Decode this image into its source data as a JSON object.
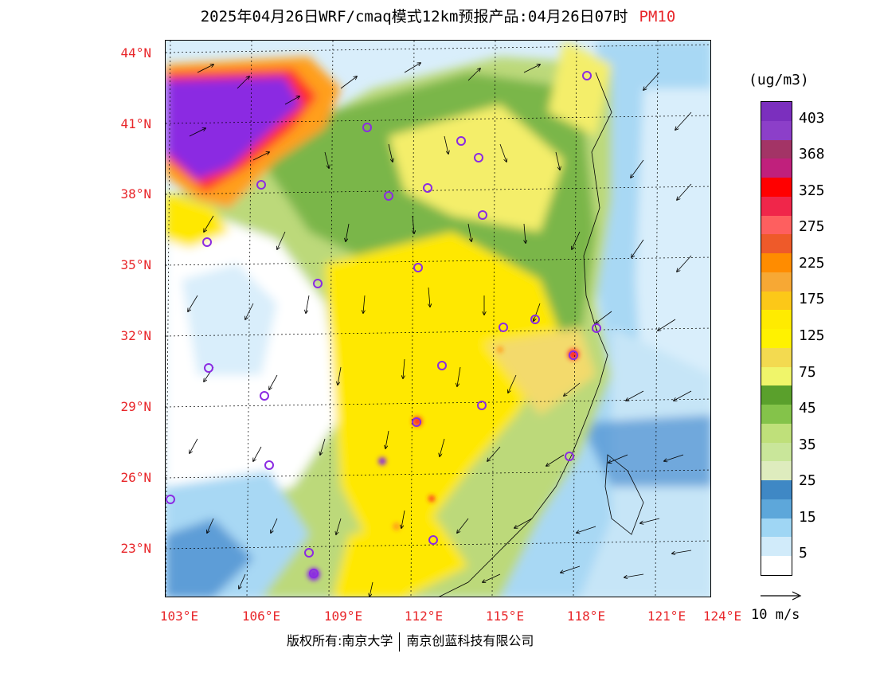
{
  "title": {
    "main": "2025年04月26日WRF/cmaq模式12km预报产品:04月26日07时",
    "variable": "PM10"
  },
  "axes": {
    "lat_labels": [
      "44°N",
      "41°N",
      "38°N",
      "35°N",
      "32°N",
      "29°N",
      "26°N",
      "23°N"
    ],
    "lon_labels": [
      "103°E",
      "106°E",
      "109°E",
      "112°E",
      "115°E",
      "118°E",
      "121°E",
      "124°E"
    ]
  },
  "colorbar": {
    "unit": "(ug/m3)",
    "labels": [
      "403",
      "368",
      "325",
      "275",
      "225",
      "175",
      "125",
      "75",
      "45",
      "35",
      "25",
      "15",
      "5"
    ],
    "colors": [
      "#7b2fbe",
      "#8c3fc9",
      "#a33466",
      "#c0207c",
      "#ff0000",
      "#f0264a",
      "#fe5f5f",
      "#ee5a2a",
      "#ff8c00",
      "#f7a834",
      "#fcc818",
      "#ffeb00",
      "#fff200",
      "#f3da50",
      "#f0f56a",
      "#5aa02c",
      "#84c34a",
      "#bfe07a",
      "#c9e69a",
      "#deecbe",
      "#3f88c5",
      "#5da7da",
      "#9fd6f4",
      "#d1ebfa",
      "#ffffff"
    ]
  },
  "vector_key": {
    "label": "10 m/s"
  },
  "footer": {
    "left": "版权所有:南京大学",
    "right": "南京创蓝科技有限公司"
  },
  "map": {
    "stations": 26,
    "palette": {
      "purple": "#8b2be2",
      "red": "#ff2a2a",
      "orange": "#ff9f1c",
      "yellow": "#ffe800",
      "lightyellow": "#f4ee6a",
      "tan": "#f3da6c",
      "green": "#7ab648",
      "lightgreen": "#bcd97a",
      "blue": "#4a8fd0",
      "lightblue": "#a8d8f4",
      "paleblue": "#d9eefb"
    }
  }
}
